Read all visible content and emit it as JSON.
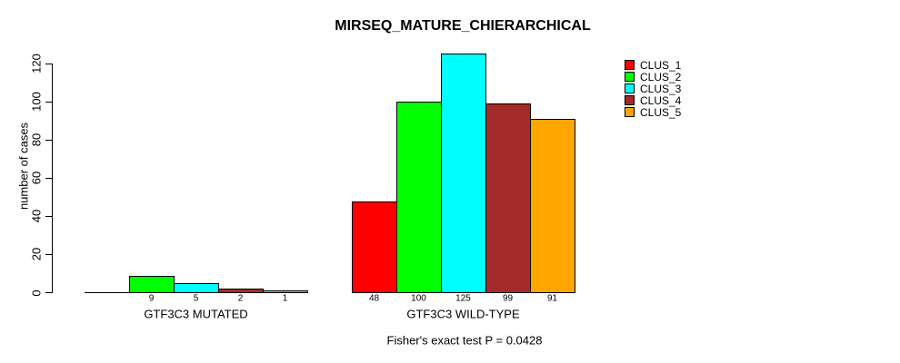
{
  "chart_data": {
    "type": "bar",
    "title": "MIRSEQ_MATURE_CHIERARCHICAL",
    "xlabel": "",
    "ylabel": "number of cases",
    "ylim": [
      0,
      120
    ],
    "yticks": [
      0,
      20,
      40,
      60,
      80,
      100,
      120
    ],
    "grid": false,
    "legend_position": "top-right",
    "categories": [
      "GTF3C3 MUTATED",
      "GTF3C3 WILD-TYPE"
    ],
    "series": [
      {
        "name": "CLUS_1",
        "color": "#FF0000",
        "values": [
          0,
          48
        ]
      },
      {
        "name": "CLUS_2",
        "color": "#00FF00",
        "values": [
          9,
          100
        ]
      },
      {
        "name": "CLUS_3",
        "color": "#00FFFF",
        "values": [
          5,
          125
        ]
      },
      {
        "name": "CLUS_4",
        "color": "#A52A2A",
        "values": [
          2,
          99
        ]
      },
      {
        "name": "CLUS_5",
        "color": "#FFA500",
        "values": [
          1,
          91
        ]
      }
    ],
    "bar_value_labels": {
      "GTF3C3 MUTATED": [
        "",
        "9",
        "5",
        "2",
        "1"
      ],
      "GTF3C3 WILD-TYPE": [
        "48",
        "100",
        "125",
        "99",
        "91"
      ]
    },
    "annotation": "Fisher's exact test P = 0.0428",
    "axis_color": "#000000",
    "bar_border_color": "#000000"
  }
}
